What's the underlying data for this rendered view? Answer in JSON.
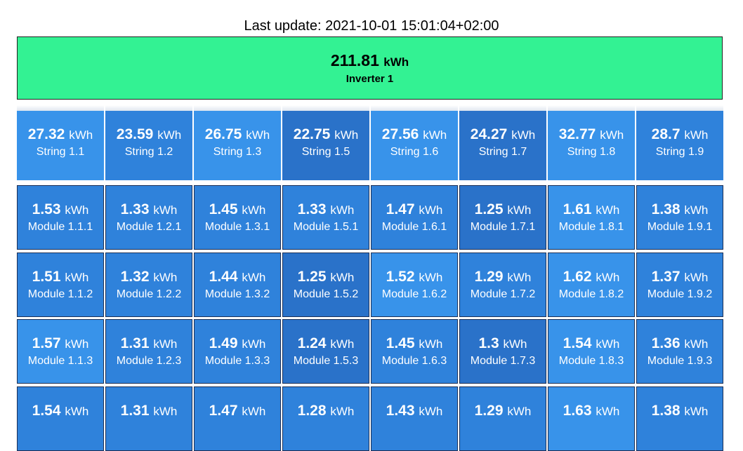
{
  "last_update": "Last update: 2021-10-01 15:01:04+02:00",
  "unit": "kWh",
  "inverter": {
    "value": "211.81",
    "name": "Inverter 1",
    "color": "#33f293"
  },
  "strings": [
    {
      "value": "27.32",
      "name": "String 1.1"
    },
    {
      "value": "23.59",
      "name": "String 1.2"
    },
    {
      "value": "26.75",
      "name": "String 1.3"
    },
    {
      "value": "22.75",
      "name": "String 1.5"
    },
    {
      "value": "27.56",
      "name": "String 1.6"
    },
    {
      "value": "24.27",
      "name": "String 1.7"
    },
    {
      "value": "32.77",
      "name": "String 1.8"
    },
    {
      "value": "28.7",
      "name": "String 1.9"
    }
  ],
  "module_rows": [
    [
      {
        "value": "1.53",
        "name": "Module 1.1.1"
      },
      {
        "value": "1.33",
        "name": "Module 1.2.1"
      },
      {
        "value": "1.45",
        "name": "Module 1.3.1"
      },
      {
        "value": "1.33",
        "name": "Module 1.5.1"
      },
      {
        "value": "1.47",
        "name": "Module 1.6.1"
      },
      {
        "value": "1.25",
        "name": "Module 1.7.1"
      },
      {
        "value": "1.61",
        "name": "Module 1.8.1"
      },
      {
        "value": "1.38",
        "name": "Module 1.9.1"
      }
    ],
    [
      {
        "value": "1.51",
        "name": "Module 1.1.2"
      },
      {
        "value": "1.32",
        "name": "Module 1.2.2"
      },
      {
        "value": "1.44",
        "name": "Module 1.3.2"
      },
      {
        "value": "1.25",
        "name": "Module 1.5.2"
      },
      {
        "value": "1.52",
        "name": "Module 1.6.2"
      },
      {
        "value": "1.29",
        "name": "Module 1.7.2"
      },
      {
        "value": "1.62",
        "name": "Module 1.8.2"
      },
      {
        "value": "1.37",
        "name": "Module 1.9.2"
      }
    ],
    [
      {
        "value": "1.57",
        "name": "Module 1.1.3"
      },
      {
        "value": "1.31",
        "name": "Module 1.2.3"
      },
      {
        "value": "1.49",
        "name": "Module 1.3.3"
      },
      {
        "value": "1.24",
        "name": "Module 1.5.3"
      },
      {
        "value": "1.45",
        "name": "Module 1.6.3"
      },
      {
        "value": "1.3",
        "name": "Module 1.7.3"
      },
      {
        "value": "1.54",
        "name": "Module 1.8.3"
      },
      {
        "value": "1.36",
        "name": "Module 1.9.3"
      }
    ],
    [
      {
        "value": "1.54",
        "name": ""
      },
      {
        "value": "1.31",
        "name": ""
      },
      {
        "value": "1.47",
        "name": ""
      },
      {
        "value": "1.28",
        "name": ""
      },
      {
        "value": "1.43",
        "name": ""
      },
      {
        "value": "1.29",
        "name": ""
      },
      {
        "value": "1.63",
        "name": ""
      },
      {
        "value": "1.38",
        "name": ""
      }
    ]
  ]
}
